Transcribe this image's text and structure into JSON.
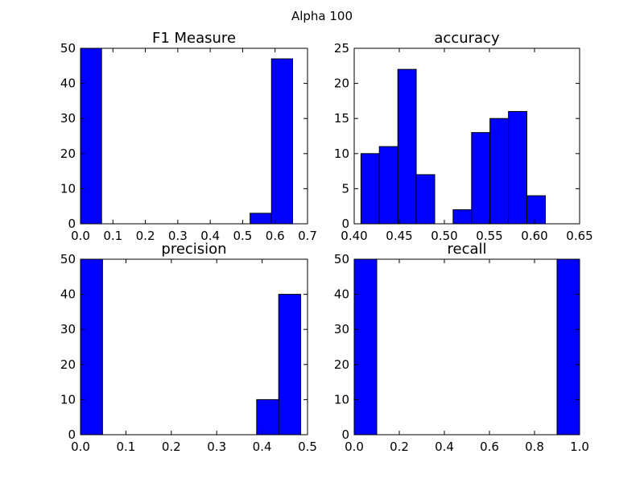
{
  "figure": {
    "suptitle": "Alpha 100"
  },
  "chart_data": [
    {
      "type": "bar",
      "title": "F1 Measure",
      "xlabel": "",
      "ylabel": "",
      "xlim": [
        0.0,
        0.7
      ],
      "ylim": [
        0,
        50
      ],
      "xticks": [
        "0.0",
        "0.1",
        "0.2",
        "0.3",
        "0.4",
        "0.5",
        "0.6",
        "0.7"
      ],
      "yticks": [
        "0",
        "10",
        "20",
        "30",
        "40",
        "50"
      ],
      "bins": [
        {
          "start": 0.0,
          "end": 0.065,
          "count": 50
        },
        {
          "start": 0.065,
          "end": 0.131,
          "count": 0
        },
        {
          "start": 0.131,
          "end": 0.196,
          "count": 0
        },
        {
          "start": 0.196,
          "end": 0.262,
          "count": 0
        },
        {
          "start": 0.262,
          "end": 0.327,
          "count": 0
        },
        {
          "start": 0.327,
          "end": 0.392,
          "count": 0
        },
        {
          "start": 0.392,
          "end": 0.458,
          "count": 0
        },
        {
          "start": 0.458,
          "end": 0.523,
          "count": 0
        },
        {
          "start": 0.523,
          "end": 0.589,
          "count": 3
        },
        {
          "start": 0.589,
          "end": 0.654,
          "count": 47
        }
      ]
    },
    {
      "type": "bar",
      "title": "accuracy",
      "xlabel": "",
      "ylabel": "",
      "xlim": [
        0.4,
        0.65
      ],
      "ylim": [
        0,
        25
      ],
      "xticks": [
        "0.40",
        "0.45",
        "0.50",
        "0.55",
        "0.60",
        "0.65"
      ],
      "yticks": [
        "0",
        "5",
        "10",
        "15",
        "20",
        "25"
      ],
      "bins": [
        {
          "start": 0.4075,
          "end": 0.4279,
          "count": 10
        },
        {
          "start": 0.4279,
          "end": 0.4484,
          "count": 11
        },
        {
          "start": 0.4484,
          "end": 0.4688,
          "count": 22
        },
        {
          "start": 0.4688,
          "end": 0.4893,
          "count": 7
        },
        {
          "start": 0.4893,
          "end": 0.5097,
          "count": 0
        },
        {
          "start": 0.5097,
          "end": 0.5302,
          "count": 2
        },
        {
          "start": 0.5302,
          "end": 0.5506,
          "count": 13
        },
        {
          "start": 0.5506,
          "end": 0.5711,
          "count": 15
        },
        {
          "start": 0.5711,
          "end": 0.5915,
          "count": 16
        },
        {
          "start": 0.5915,
          "end": 0.612,
          "count": 4
        }
      ]
    },
    {
      "type": "bar",
      "title": "precision",
      "xlabel": "",
      "ylabel": "",
      "xlim": [
        0.0,
        0.5
      ],
      "ylim": [
        0,
        50
      ],
      "xticks": [
        "0.0",
        "0.1",
        "0.2",
        "0.3",
        "0.4",
        "0.5"
      ],
      "yticks": [
        "0",
        "10",
        "20",
        "30",
        "40",
        "50"
      ],
      "bins": [
        {
          "start": 0.0,
          "end": 0.0485,
          "count": 50
        },
        {
          "start": 0.0485,
          "end": 0.097,
          "count": 0
        },
        {
          "start": 0.097,
          "end": 0.1455,
          "count": 0
        },
        {
          "start": 0.1455,
          "end": 0.194,
          "count": 0
        },
        {
          "start": 0.194,
          "end": 0.2425,
          "count": 0
        },
        {
          "start": 0.2425,
          "end": 0.291,
          "count": 0
        },
        {
          "start": 0.291,
          "end": 0.3395,
          "count": 0
        },
        {
          "start": 0.3395,
          "end": 0.388,
          "count": 0
        },
        {
          "start": 0.388,
          "end": 0.4365,
          "count": 10
        },
        {
          "start": 0.4365,
          "end": 0.485,
          "count": 40
        }
      ]
    },
    {
      "type": "bar",
      "title": "recall",
      "xlabel": "",
      "ylabel": "",
      "xlim": [
        0.0,
        1.0
      ],
      "ylim": [
        0,
        50
      ],
      "xticks": [
        "0.0",
        "0.2",
        "0.4",
        "0.6",
        "0.8",
        "1.0"
      ],
      "yticks": [
        "0",
        "10",
        "20",
        "30",
        "40",
        "50"
      ],
      "bins": [
        {
          "start": 0.0,
          "end": 0.1,
          "count": 50
        },
        {
          "start": 0.1,
          "end": 0.2,
          "count": 0
        },
        {
          "start": 0.2,
          "end": 0.3,
          "count": 0
        },
        {
          "start": 0.3,
          "end": 0.4,
          "count": 0
        },
        {
          "start": 0.4,
          "end": 0.5,
          "count": 0
        },
        {
          "start": 0.5,
          "end": 0.6,
          "count": 0
        },
        {
          "start": 0.6,
          "end": 0.7,
          "count": 0
        },
        {
          "start": 0.7,
          "end": 0.8,
          "count": 0
        },
        {
          "start": 0.8,
          "end": 0.9,
          "count": 0
        },
        {
          "start": 0.9,
          "end": 1.0,
          "count": 50
        }
      ]
    }
  ]
}
